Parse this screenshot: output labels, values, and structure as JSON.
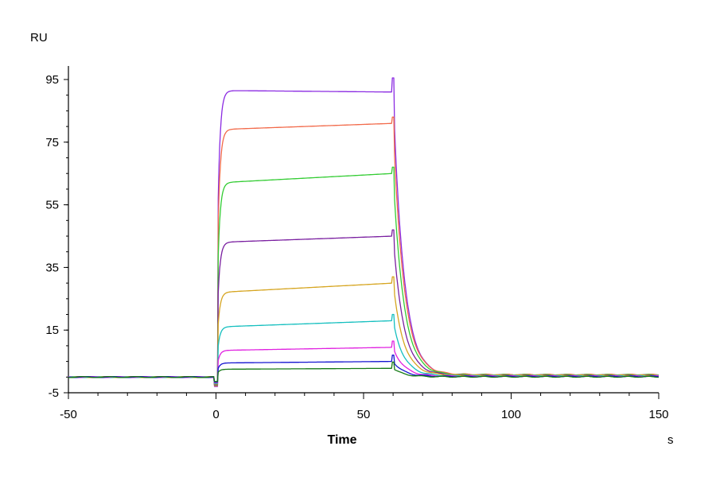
{
  "chart_data": {
    "type": "line",
    "title": "",
    "xlabel": "Time",
    "ylabel": "",
    "x_unit": "s",
    "y_unit": "RU",
    "xlim": [
      -50,
      150
    ],
    "ylim": [
      -5,
      100
    ],
    "x_ticks": [
      -50,
      0,
      50,
      100,
      150
    ],
    "y_ticks": [
      -5,
      15,
      35,
      55,
      75,
      95
    ],
    "x_minor_step": 10,
    "y_minor_step": 5,
    "grid": false,
    "legend": "none",
    "association_start": 0,
    "dissociation_start": 60,
    "series": [
      {
        "color": "#8B2BE2",
        "baseline": 0,
        "plateau_start": 91.5,
        "plateau_end": 91.0,
        "dissociation_residual": 0.5,
        "spike_at_60": 95.5
      },
      {
        "color": "#F26A4A",
        "baseline": 0,
        "plateau_start": 79.0,
        "plateau_end": 81.0,
        "dissociation_residual": 0.8
      },
      {
        "color": "#33CC33",
        "baseline": 0,
        "plateau_start": 62.0,
        "plateau_end": 65.0,
        "dissociation_residual": 0.7
      },
      {
        "color": "#7A1FA0",
        "baseline": 0,
        "plateau_start": 43.0,
        "plateau_end": 45.0,
        "dissociation_residual": 0.6
      },
      {
        "color": "#D6A520",
        "baseline": 0,
        "plateau_start": 27.0,
        "plateau_end": 30.0,
        "dissociation_residual": 0.6
      },
      {
        "color": "#14BFBF",
        "baseline": 0,
        "plateau_start": 16.0,
        "plateau_end": 18.0,
        "dissociation_residual": 0.4
      },
      {
        "color": "#E020E0",
        "baseline": 0,
        "plateau_start": 8.5,
        "plateau_end": 9.5,
        "dissociation_residual": 0.3
      },
      {
        "color": "#1414D0",
        "baseline": 0,
        "plateau_start": 4.5,
        "plateau_end": 5.0,
        "dissociation_residual": 0.2
      },
      {
        "color": "#157A15",
        "baseline": 0,
        "plateau_start": 2.5,
        "plateau_end": 2.8,
        "dissociation_residual": 0.1
      }
    ]
  }
}
